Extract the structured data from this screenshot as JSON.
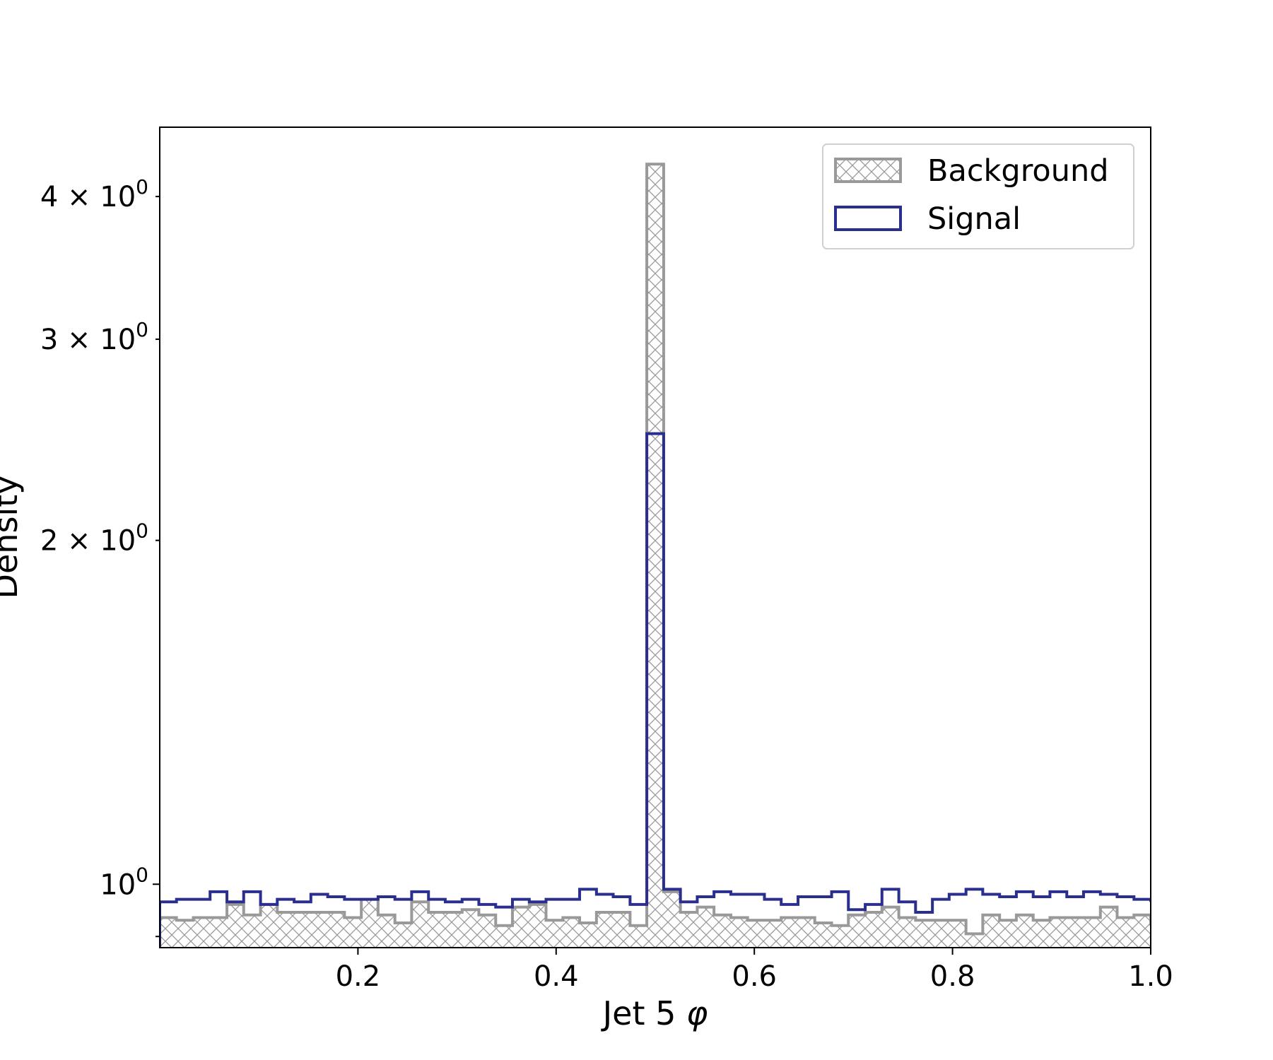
{
  "chart_data": {
    "type": "histogram-step",
    "xlabel_base": "Jet 5 ",
    "xlabel_symbol": "φ",
    "ylabel": "Density",
    "xlim": [
      0.0,
      1.0
    ],
    "ylim": [
      0.88,
      4.6
    ],
    "yscale": "log",
    "x_ticks": [
      {
        "value": 0.2,
        "label": "0.2"
      },
      {
        "value": 0.4,
        "label": "0.4"
      },
      {
        "value": 0.6,
        "label": "0.6"
      },
      {
        "value": 0.8,
        "label": "0.8"
      },
      {
        "value": 1.0,
        "label": "1.0"
      }
    ],
    "y_major_ticks": [
      {
        "value": 1.0,
        "mant": "",
        "base": "10",
        "exp": "0"
      }
    ],
    "y_minor_ticks": [
      {
        "value": 2.0,
        "mant": "2 × ",
        "base": "10",
        "exp": "0"
      },
      {
        "value": 3.0,
        "mant": "3 × ",
        "base": "10",
        "exp": "0"
      },
      {
        "value": 4.0,
        "mant": "4 × ",
        "base": "10",
        "exp": "0"
      },
      {
        "value": 0.9,
        "mant": "",
        "base": "",
        "exp": ""
      }
    ],
    "bin_edges": [
      0.0,
      0.0169,
      0.0339,
      0.0508,
      0.0678,
      0.0847,
      0.1017,
      0.1186,
      0.1356,
      0.1525,
      0.1695,
      0.1864,
      0.2034,
      0.2203,
      0.2373,
      0.2542,
      0.2712,
      0.2881,
      0.3051,
      0.322,
      0.339,
      0.3559,
      0.3729,
      0.3898,
      0.4068,
      0.4237,
      0.4407,
      0.4576,
      0.4746,
      0.4915,
      0.5085,
      0.5254,
      0.5424,
      0.5593,
      0.5763,
      0.5932,
      0.6102,
      0.6271,
      0.6441,
      0.661,
      0.678,
      0.6949,
      0.7119,
      0.7288,
      0.7458,
      0.7627,
      0.7797,
      0.7966,
      0.8136,
      0.8305,
      0.8475,
      0.8644,
      0.8814,
      0.8983,
      0.9153,
      0.9322,
      0.9492,
      0.9661,
      0.9831,
      1.0
    ],
    "series": [
      {
        "name": "Background",
        "style": "hatched",
        "color": "#999999",
        "values": [
          0.935,
          0.93,
          0.935,
          0.935,
          0.96,
          0.94,
          0.96,
          0.945,
          0.945,
          0.945,
          0.945,
          0.935,
          0.97,
          0.94,
          0.925,
          0.965,
          0.945,
          0.945,
          0.95,
          0.94,
          0.92,
          0.955,
          0.96,
          0.93,
          0.935,
          0.925,
          0.945,
          0.945,
          0.92,
          4.27,
          0.985,
          0.945,
          0.955,
          0.94,
          0.935,
          0.93,
          0.93,
          0.935,
          0.935,
          0.925,
          0.92,
          0.94,
          0.945,
          0.955,
          0.935,
          0.93,
          0.93,
          0.93,
          0.905,
          0.94,
          0.93,
          0.94,
          0.93,
          0.935,
          0.935,
          0.935,
          0.955,
          0.935,
          0.94,
          0.92
        ]
      },
      {
        "name": "Signal",
        "style": "step",
        "color": "#2a2f8f",
        "values": [
          0.965,
          0.97,
          0.97,
          0.985,
          0.965,
          0.985,
          0.96,
          0.97,
          0.965,
          0.98,
          0.975,
          0.97,
          0.97,
          0.975,
          0.97,
          0.985,
          0.97,
          0.965,
          0.97,
          0.96,
          0.955,
          0.97,
          0.965,
          0.97,
          0.97,
          0.99,
          0.98,
          0.975,
          0.96,
          2.48,
          0.99,
          0.965,
          0.975,
          0.985,
          0.98,
          0.98,
          0.97,
          0.96,
          0.975,
          0.975,
          0.985,
          0.95,
          0.96,
          0.99,
          0.965,
          0.945,
          0.97,
          0.98,
          0.99,
          0.98,
          0.975,
          0.985,
          0.975,
          0.985,
          0.975,
          0.985,
          0.98,
          0.975,
          0.97,
          0.965
        ]
      }
    ],
    "legend": {
      "position": "top-right",
      "items": [
        {
          "label": "Background",
          "style": "hatched",
          "color": "#999999"
        },
        {
          "label": "Signal",
          "style": "outline",
          "color": "#2a2f8f"
        }
      ]
    }
  }
}
